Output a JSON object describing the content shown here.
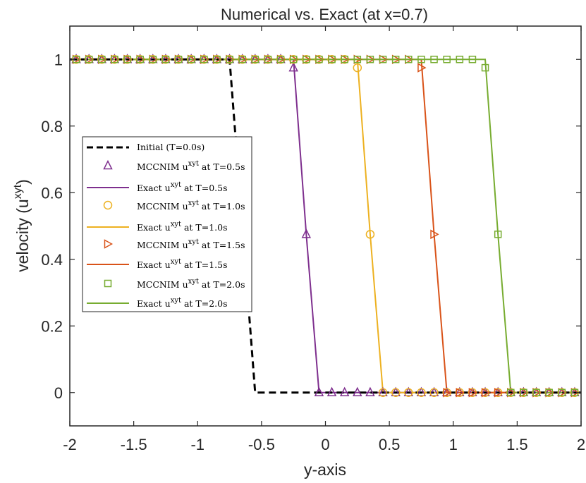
{
  "chart_data": {
    "type": "line",
    "title": "Numerical vs. Exact (at x=0.7)",
    "xlabel": "y-axis",
    "ylabel": "velocity (u",
    "ylabel_sup": "xyt",
    "ylabel_close": ")",
    "xlim": [
      -2,
      2
    ],
    "ylim": [
      -0.1,
      1.1
    ],
    "xticks": [
      -2,
      -1.5,
      -1,
      -0.5,
      0,
      0.5,
      1,
      1.5,
      2
    ],
    "xtick_labels": [
      "-2",
      "-1.5",
      "-1",
      "-0.5",
      "0",
      "0.5",
      "1",
      "1.5",
      "2"
    ],
    "yticks": [
      0,
      0.2,
      0.4,
      0.6,
      0.8,
      1
    ],
    "ytick_labels": [
      "0",
      "0.2",
      "0.4",
      "0.6",
      "0.8",
      "1"
    ],
    "grid": false,
    "legend_position": "center-left",
    "initial": {
      "legend": "Initial (T=0.0s)",
      "color": "#000000",
      "x": [
        -2,
        -0.75,
        -0.55,
        2
      ],
      "y": [
        1,
        1,
        0,
        0
      ]
    },
    "series": [
      {
        "numeric_label": "MCCNIM u",
        "exact_label": "Exact u",
        "label_sup": "xyt",
        "label_suffix": " at T=0.5s",
        "color": "#7E2F8E",
        "marker": "triangle-up",
        "exact_x": [
          -2,
          -0.25,
          -0.15,
          -0.05,
          2
        ],
        "exact_y": [
          1,
          1,
          0.475,
          0,
          0
        ],
        "marker_x_start": -1.95,
        "marker_x_end": -0.25,
        "transition_x": [
          -0.15
        ],
        "transition_y": [
          0.475
        ],
        "zero_x_start": -0.05,
        "zero_x_end": 1.95,
        "marker_step": 0.1
      },
      {
        "numeric_label": "MCCNIM u",
        "exact_label": "Exact u",
        "label_sup": "xyt",
        "label_suffix": " at T=1.0s",
        "color": "#EDB120",
        "marker": "circle",
        "exact_x": [
          -2,
          0.25,
          0.35,
          0.45,
          2
        ],
        "exact_y": [
          1,
          1,
          0.475,
          0,
          0
        ],
        "marker_x_start": -1.95,
        "marker_x_end": 0.25,
        "transition_x": [
          0.35
        ],
        "transition_y": [
          0.475
        ],
        "zero_x_start": 0.45,
        "zero_x_end": 1.95,
        "marker_step": 0.1
      },
      {
        "numeric_label": "MCCNIM u",
        "exact_label": "Exact u",
        "label_sup": "xyt",
        "label_suffix": " at T=1.5s",
        "color": "#D95319",
        "marker": "triangle-right",
        "exact_x": [
          -2,
          0.75,
          0.85,
          0.95,
          2
        ],
        "exact_y": [
          1,
          1,
          0.475,
          0,
          0
        ],
        "marker_x_start": -1.95,
        "marker_x_end": 0.75,
        "transition_x": [
          0.85
        ],
        "transition_y": [
          0.475
        ],
        "zero_x_start": 0.95,
        "zero_x_end": 1.95,
        "marker_step": 0.1
      },
      {
        "numeric_label": "MCCNIM u",
        "exact_label": "Exact u",
        "label_sup": "xyt",
        "label_suffix": " at T=2.0s",
        "color": "#77AC30",
        "marker": "square",
        "exact_x": [
          -2,
          1.25,
          1.35,
          1.45,
          2
        ],
        "exact_y": [
          1,
          1,
          0.475,
          0,
          0
        ],
        "marker_x_start": -1.95,
        "marker_x_end": 1.25,
        "transition_x": [
          1.35
        ],
        "transition_y": [
          0.475
        ],
        "zero_x_start": 1.45,
        "zero_x_end": 1.95,
        "marker_step": 0.1
      }
    ]
  }
}
